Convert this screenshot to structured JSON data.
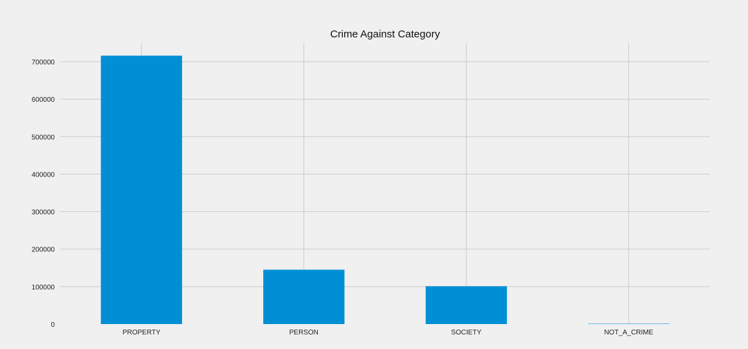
{
  "chart_data": {
    "type": "bar",
    "title": "Crime Against Category",
    "xlabel": "",
    "ylabel": "",
    "categories": [
      "PROPERTY",
      "PERSON",
      "SOCIETY",
      "NOT_A_CRIME"
    ],
    "values": [
      716000,
      145000,
      101000,
      1000
    ],
    "ylim": [
      0,
      750000
    ],
    "yticks": [
      0,
      100000,
      200000,
      300000,
      400000,
      500000,
      600000,
      700000
    ],
    "ytick_labels": [
      "0",
      "100000",
      "200000",
      "300000",
      "400000",
      "500000",
      "600000",
      "700000"
    ],
    "grid": true,
    "legend": "none",
    "colors": {
      "bar": "#008fd5",
      "background": "#f0f0f0",
      "grid": "#cbcbcb"
    }
  }
}
